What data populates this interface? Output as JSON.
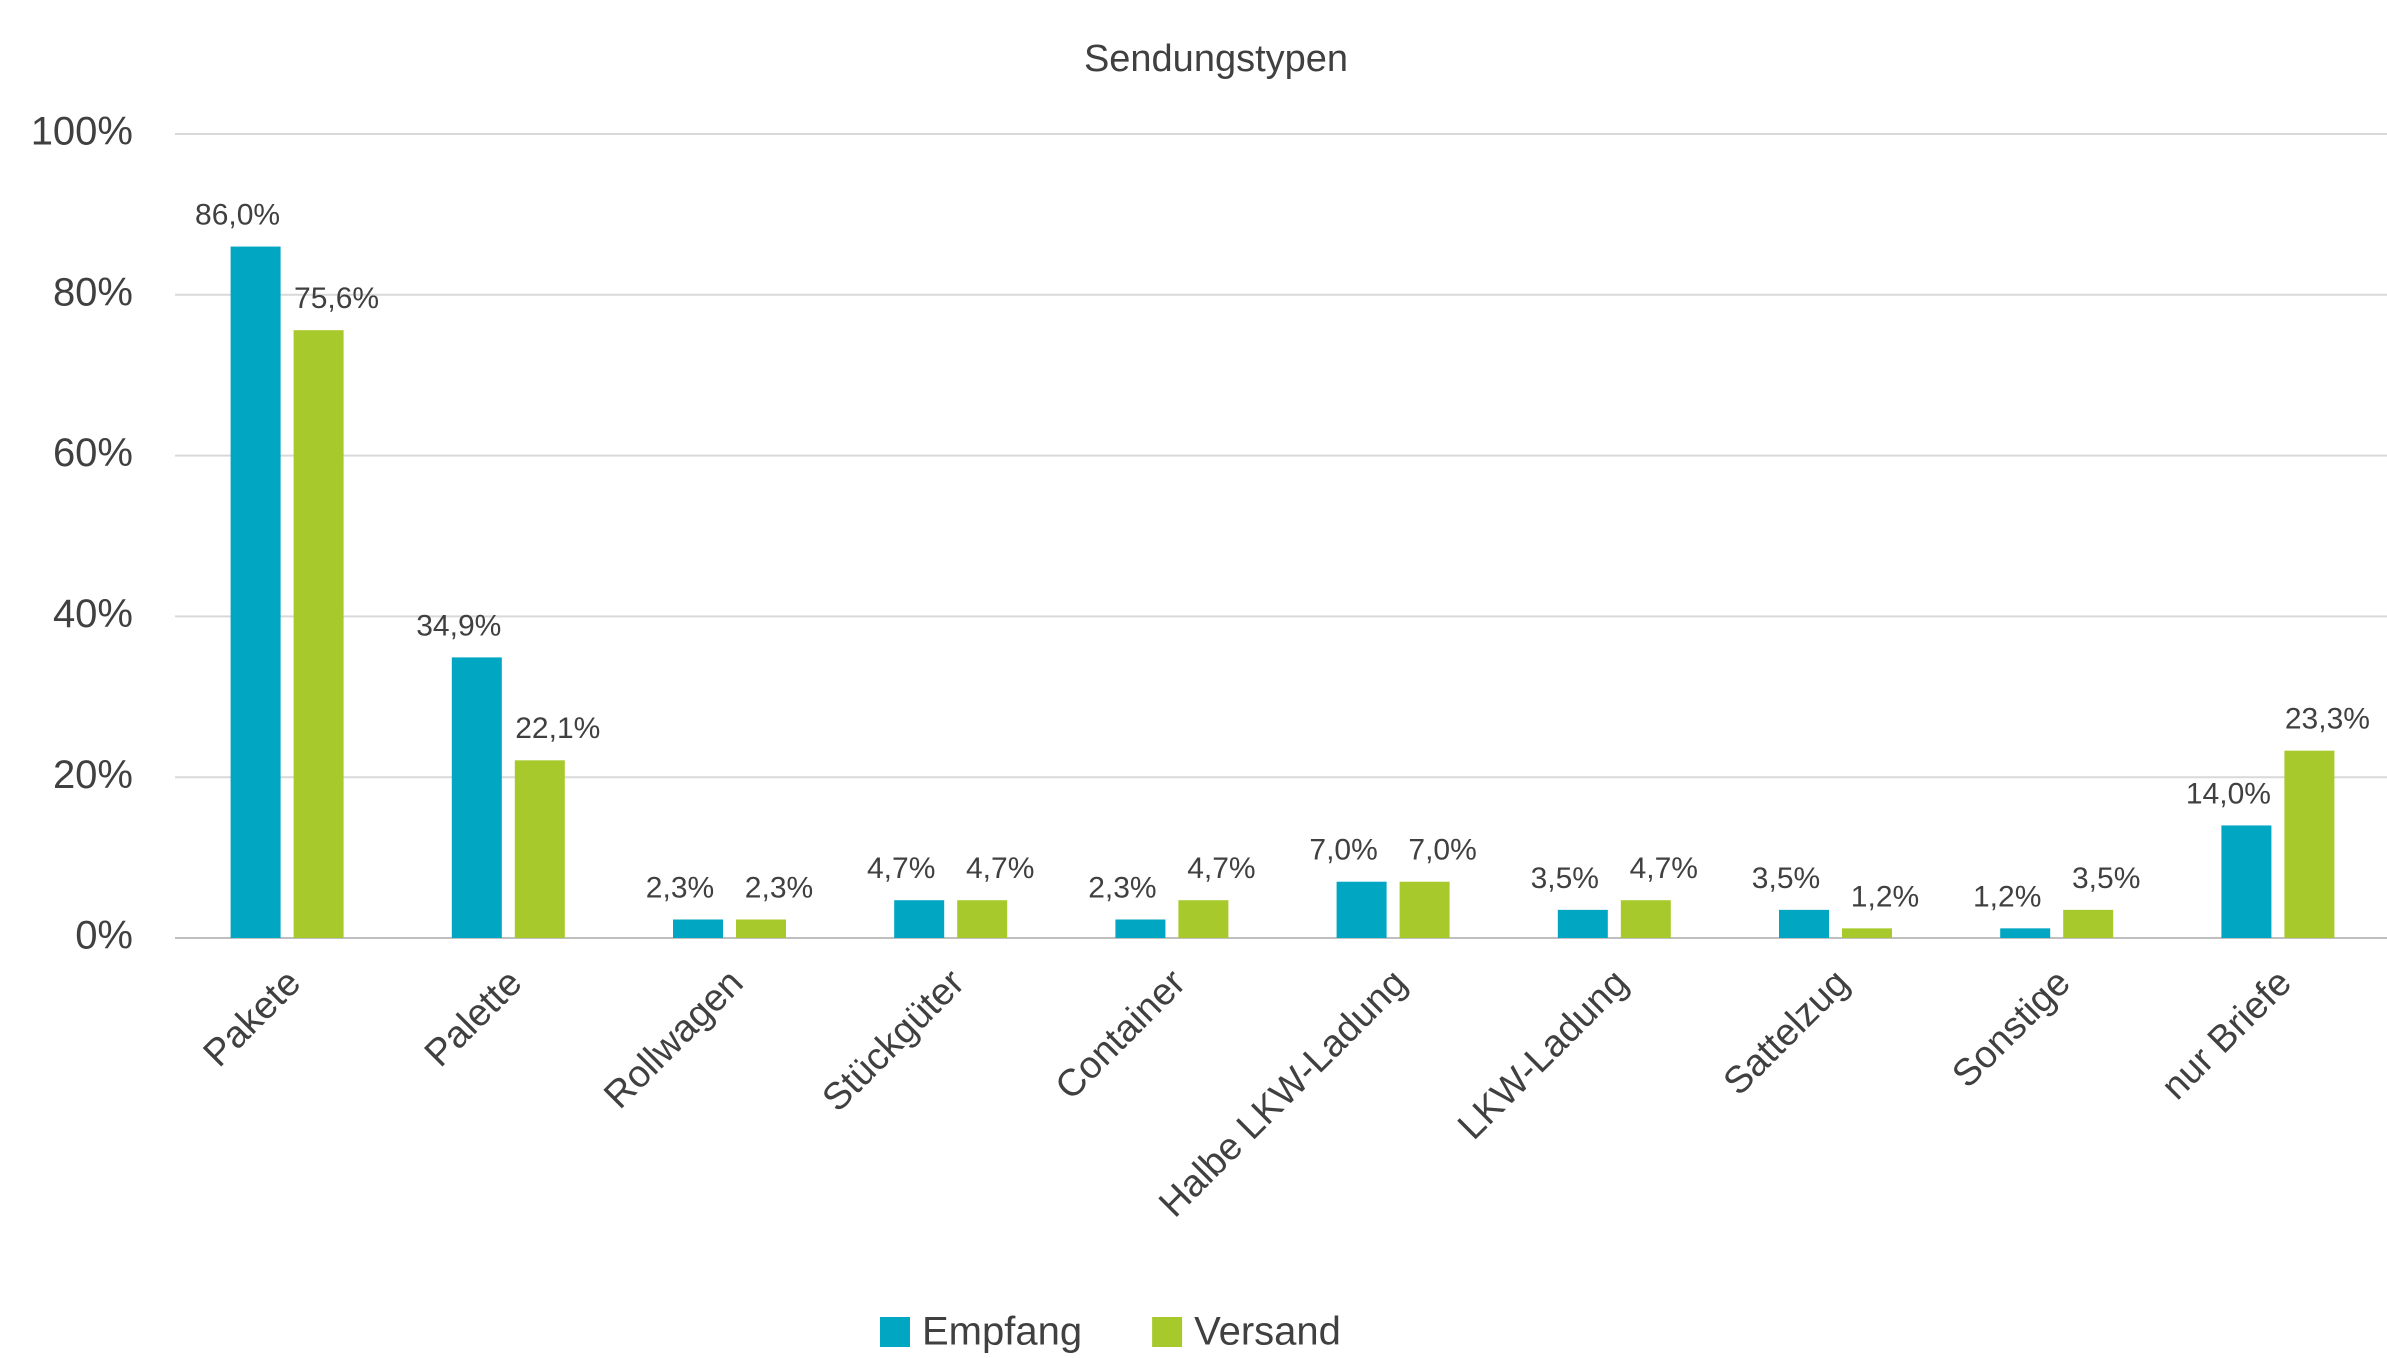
{
  "chart_data": {
    "type": "bar",
    "title": "Sendungstypen",
    "categories": [
      "Pakete",
      "Palette",
      "Rollwagen",
      "Stückgüter",
      "Container",
      "Halbe LKW-Ladung",
      "LKW-Ladung",
      "Sattelzug",
      "Sonstige",
      "nur Briefe"
    ],
    "series": [
      {
        "name": "Empfang",
        "color": "#00a6c2",
        "values": [
          86.0,
          34.9,
          2.3,
          4.7,
          2.3,
          7.0,
          3.5,
          3.5,
          1.2,
          14.0
        ],
        "value_labels": [
          "86,0%",
          "34,9%",
          "2,3%",
          "4,7%",
          "2,3%",
          "7,0%",
          "3,5%",
          "3,5%",
          "1,2%",
          "14,0%"
        ]
      },
      {
        "name": "Versand",
        "color": "#a8c92b",
        "values": [
          75.6,
          22.1,
          2.3,
          4.7,
          4.7,
          7.0,
          4.7,
          1.2,
          3.5,
          23.3
        ],
        "value_labels": [
          "75,6%",
          "22,1%",
          "2,3%",
          "4,7%",
          "4,7%",
          "7,0%",
          "4,7%",
          "1,2%",
          "3,5%",
          "23,3%"
        ]
      }
    ],
    "ylim": [
      0,
      100
    ],
    "yticks": [
      {
        "value": 0,
        "label": "0%"
      },
      {
        "value": 20,
        "label": "20%"
      },
      {
        "value": 40,
        "label": "40%"
      },
      {
        "value": 60,
        "label": "60%"
      },
      {
        "value": 80,
        "label": "80%"
      },
      {
        "value": 100,
        "label": "100%"
      }
    ],
    "grid": true,
    "legend": "bottom"
  }
}
